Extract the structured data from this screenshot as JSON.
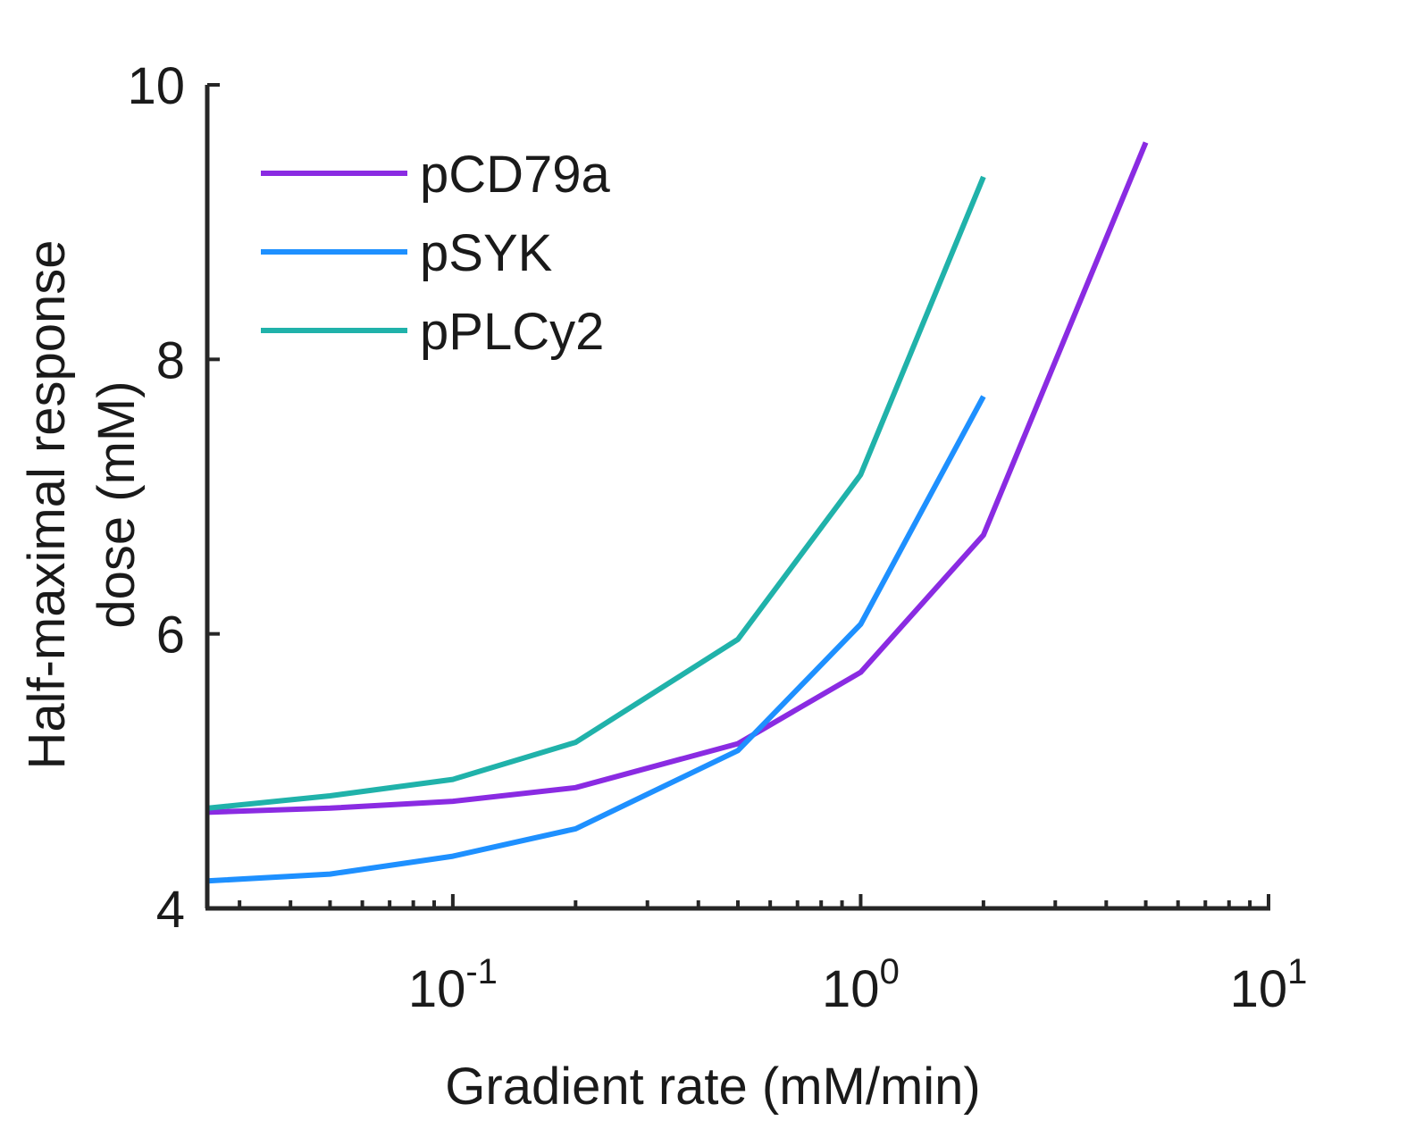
{
  "chart_data": {
    "type": "line",
    "xscale": "log",
    "xlabel": "Gradient rate (mM/min)",
    "ylabel_lines": [
      "Half-maximal response",
      "dose (mM)"
    ],
    "xlim": [
      0.025,
      10
    ],
    "ylim": [
      4,
      10
    ],
    "x_ticks": [
      {
        "value": 0.1,
        "base": "10",
        "exp": "-1"
      },
      {
        "value": 1,
        "base": "10",
        "exp": "0"
      },
      {
        "value": 10,
        "base": "10",
        "exp": "1"
      }
    ],
    "y_ticks": [
      4,
      6,
      8,
      10
    ],
    "legend_position": "top-left",
    "grid": false,
    "series": [
      {
        "name": "pCD79a",
        "color": "#8a2be2",
        "x": [
          0.025,
          0.05,
          0.1,
          0.2,
          0.5,
          1,
          2,
          5
        ],
        "y": [
          4.7,
          4.73,
          4.78,
          4.88,
          5.2,
          5.72,
          6.72,
          9.58
        ]
      },
      {
        "name": "pSYK",
        "color": "#1e90ff",
        "x": [
          0.025,
          0.05,
          0.1,
          0.2,
          0.5,
          1,
          2
        ],
        "y": [
          4.2,
          4.25,
          4.38,
          4.58,
          5.15,
          6.07,
          7.73
        ]
      },
      {
        "name": "pPLCy2",
        "color": "#20b2aa",
        "x": [
          0.025,
          0.05,
          0.1,
          0.2,
          0.5,
          1,
          2
        ],
        "y": [
          4.73,
          4.82,
          4.94,
          5.21,
          5.96,
          7.16,
          9.33
        ]
      }
    ]
  }
}
